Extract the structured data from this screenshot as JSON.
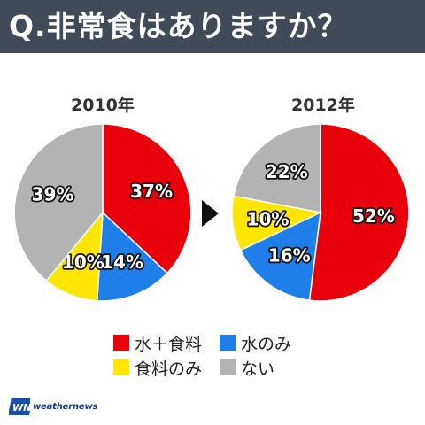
{
  "header": {
    "title": "Q.非常食はありますか？"
  },
  "colors": {
    "water_and_food": "#e8000a",
    "water_only": "#1e7fe8",
    "food_only": "#ffe600",
    "none": "#b3b3b3"
  },
  "legend": {
    "items": [
      {
        "label": "水＋食料",
        "color": "#e8000a"
      },
      {
        "label": "水のみ",
        "color": "#1e7fe8"
      },
      {
        "label": "食料のみ",
        "color": "#ffe600"
      },
      {
        "label": "ない",
        "color": "#b3b3b3"
      }
    ]
  },
  "chart_data": [
    {
      "type": "pie",
      "title": "2010年",
      "categories": [
        "水＋食料",
        "水のみ",
        "食料のみ",
        "ない"
      ],
      "values": [
        37,
        14,
        10,
        39
      ],
      "labels": [
        "37%",
        "14%",
        "10%",
        "39%"
      ],
      "colors": [
        "#e8000a",
        "#1e7fe8",
        "#ffe600",
        "#b3b3b3"
      ],
      "start": "12 o'clock",
      "direction": "clockwise"
    },
    {
      "type": "pie",
      "title": "2012年",
      "categories": [
        "水＋食料",
        "水のみ",
        "食料のみ",
        "ない"
      ],
      "values": [
        52,
        16,
        10,
        22
      ],
      "labels": [
        "52%",
        "16%",
        "10%",
        "22%"
      ],
      "colors": [
        "#e8000a",
        "#1e7fe8",
        "#ffe600",
        "#b3b3b3"
      ],
      "start": "12 o'clock",
      "direction": "clockwise"
    }
  ],
  "logo": {
    "mark": "WN",
    "text": "weathernews"
  }
}
